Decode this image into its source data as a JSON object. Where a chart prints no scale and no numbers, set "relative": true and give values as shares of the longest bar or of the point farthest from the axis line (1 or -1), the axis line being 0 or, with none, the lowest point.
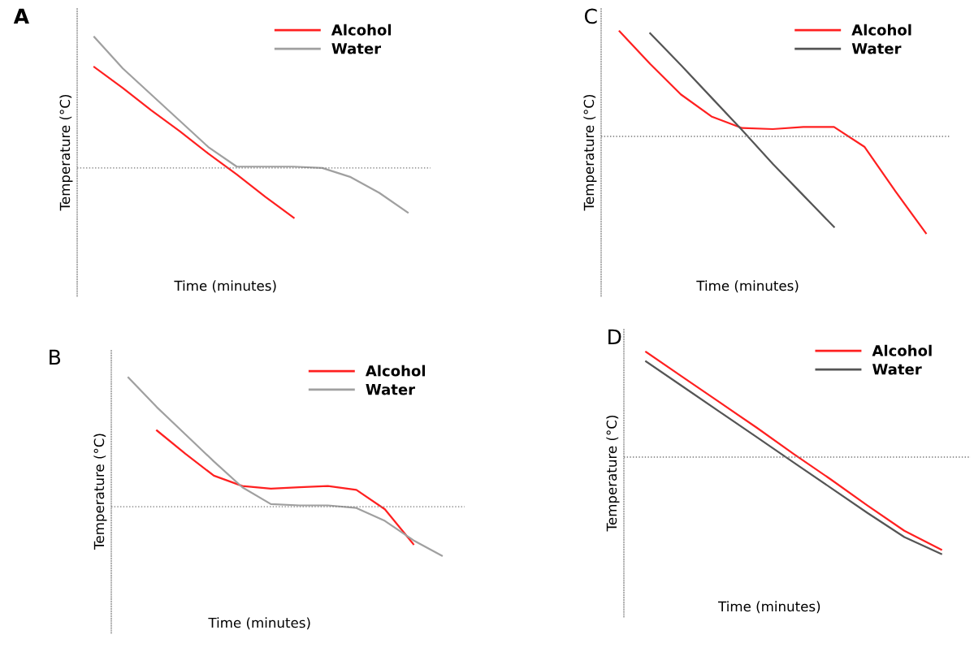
{
  "chart_data": [
    {
      "type": "line",
      "title": "A",
      "xlabel": "Time (minutes)",
      "ylabel": "Temperature (°C)",
      "relative": true,
      "legend": "top right",
      "line_style": "solid",
      "ref_lines": [
        {
          "axis": "y",
          "value": 0,
          "color": "#777777",
          "line_style": "dotted"
        }
      ],
      "categories": [
        null,
        null,
        null,
        null,
        null,
        null,
        null,
        null,
        null,
        null,
        null,
        null
      ],
      "series": [
        {
          "name": "Alcohol",
          "color": "#ff2020",
          "values": [
            0.77,
            0.61,
            0.44,
            0.28,
            0.11,
            -0.05,
            -0.22,
            -0.38,
            null,
            null,
            null,
            null
          ]
        },
        {
          "name": "Water",
          "color": "#a0a0a0",
          "values": [
            1.0,
            0.76,
            0.56,
            0.36,
            0.16,
            0.01,
            0.01,
            0.01,
            0,
            -0.07,
            -0.19,
            -0.34
          ]
        }
      ]
    },
    {
      "type": "line",
      "title": "B",
      "xlabel": "Time (minutes)",
      "ylabel": "Temperature (°C)",
      "relative": true,
      "legend": "top right",
      "line_style": "solid",
      "ref_lines": [
        {
          "axis": "y",
          "value": 0,
          "color": "#777777",
          "line_style": "dotted"
        }
      ],
      "categories": [
        null,
        null,
        null,
        null,
        null,
        null,
        null,
        null,
        null,
        null,
        null,
        null
      ],
      "series": [
        {
          "name": "Alcohol",
          "color": "#ff2020",
          "values": [
            null,
            0.59,
            0.41,
            0.24,
            0.16,
            0.14,
            0.15,
            0.16,
            0.13,
            -0.02,
            -0.29,
            null
          ]
        },
        {
          "name": "Water",
          "color": "#a0a0a0",
          "values": [
            1.0,
            0.77,
            0.56,
            0.35,
            0.15,
            0.02,
            0.01,
            0.01,
            -0.01,
            -0.11,
            -0.26,
            -0.38
          ]
        }
      ]
    },
    {
      "type": "line",
      "title": "C",
      "xlabel": "Time (minutes)",
      "ylabel": "Temperature (°C)",
      "relative": true,
      "legend": "top right",
      "line_style": "solid",
      "ref_lines": [
        {
          "axis": "y",
          "value": 0,
          "color": "#777777",
          "line_style": "dotted"
        }
      ],
      "categories": [
        null,
        null,
        null,
        null,
        null,
        null,
        null,
        null,
        null,
        null,
        null
      ],
      "series": [
        {
          "name": "Alcohol",
          "color": "#ff2020",
          "values": [
            1.0,
            0.69,
            0.4,
            0.19,
            0.08,
            0.07,
            0.09,
            0.09,
            -0.1,
            -0.52,
            -0.92
          ]
        },
        {
          "name": "Water",
          "color": "#555555",
          "values": [
            null,
            0.98,
            0.68,
            0.37,
            0.06,
            -0.26,
            -0.56,
            -0.86,
            null,
            null,
            null
          ]
        }
      ]
    },
    {
      "type": "line",
      "title": "D",
      "xlabel": "Time (minutes)",
      "ylabel": "Temperature (°C)",
      "relative": true,
      "legend": "top right",
      "line_style": "solid",
      "ref_lines": [
        {
          "axis": "y",
          "value": 0,
          "color": "#777777",
          "line_style": "dotted"
        }
      ],
      "categories": [
        null,
        null,
        null,
        null,
        null,
        null,
        null,
        null,
        null
      ],
      "series": [
        {
          "name": "Alcohol",
          "color": "#ff2020",
          "values": [
            1.0,
            0.76,
            0.52,
            0.28,
            0.03,
            -0.21,
            -0.46,
            -0.7,
            -0.88
          ]
        },
        {
          "name": "Water",
          "color": "#555555",
          "values": [
            0.91,
            0.67,
            0.43,
            0.19,
            -0.05,
            -0.29,
            -0.53,
            -0.76,
            -0.92
          ]
        }
      ]
    }
  ]
}
